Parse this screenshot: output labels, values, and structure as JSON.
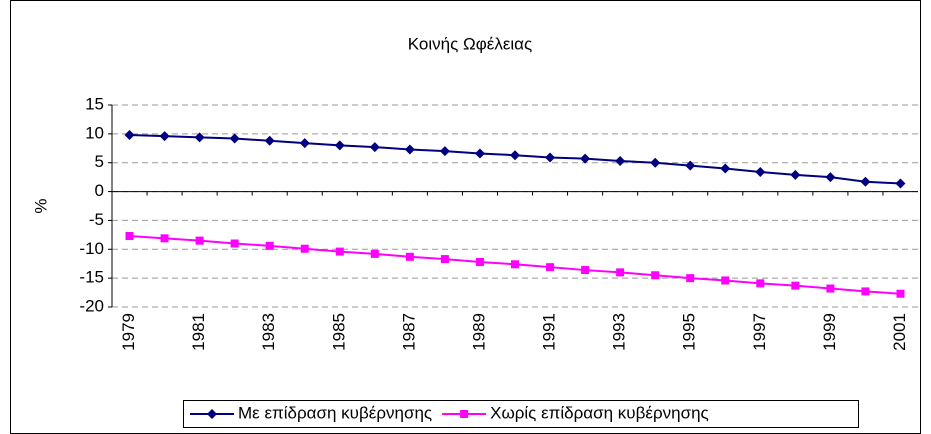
{
  "chart_data": {
    "type": "line",
    "title": "Κοινής Ωφέλειας",
    "y_label": "%",
    "categories": [
      "1979",
      null,
      "1981",
      null,
      "1983",
      null,
      "1985",
      null,
      "1987",
      null,
      "1989",
      null,
      "1991",
      null,
      "1993",
      null,
      "1995",
      null,
      "1997",
      null,
      "1999",
      null,
      "2001"
    ],
    "series": [
      {
        "name": "Με επίδραση κυβέρνησης",
        "color": "#000080",
        "marker": "diamond",
        "values": [
          9.8,
          9.6,
          9.4,
          9.2,
          8.8,
          8.4,
          8.0,
          7.7,
          7.3,
          7.0,
          6.6,
          6.3,
          5.9,
          5.7,
          5.3,
          5.0,
          4.5,
          4.0,
          3.4,
          2.9,
          2.5,
          1.7,
          1.4
        ]
      },
      {
        "name": "Χωρίς επίδραση κυβέρνησης",
        "color": "#ff00ff",
        "marker": "square",
        "values": [
          -7.7,
          -8.1,
          -8.5,
          -9.0,
          -9.4,
          -9.9,
          -10.4,
          -10.8,
          -11.3,
          -11.7,
          -12.2,
          -12.6,
          -13.1,
          -13.6,
          -14.0,
          -14.5,
          -15.0,
          -15.4,
          -15.9,
          -16.3,
          -16.8,
          -17.3,
          -17.7
        ]
      }
    ],
    "ylim": [
      -20,
      15
    ],
    "yticks": [
      -20,
      -15,
      -10,
      -5,
      0,
      5,
      10,
      15
    ],
    "grid": true,
    "legend": "bottom"
  }
}
